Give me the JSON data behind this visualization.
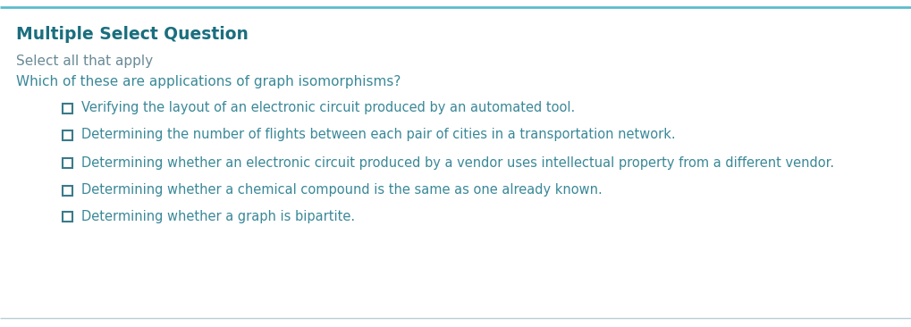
{
  "title": "Multiple Select Question",
  "subtitle": "Select all that apply",
  "question": "Which of these are applications of graph isomorphisms?",
  "options": [
    "Verifying the layout of an electronic circuit produced by an automated tool.",
    "Determining the number of flights between each pair of cities in a transportation network.",
    "Determining whether an electronic circuit produced by a vendor uses intellectual property from a different vendor.",
    "Determining whether a chemical compound is the same as one already known.",
    "Determining whether a graph is bipartite."
  ],
  "bg_color": "#ffffff",
  "title_color": "#1a6e7e",
  "subtitle_color": "#6a8a96",
  "question_color": "#3a8898",
  "option_color": "#3a8898",
  "checkbox_color": "#3a7a8a",
  "top_border_color": "#5abccc",
  "bottom_border_color": "#b8cdd5",
  "title_fontsize": 13.5,
  "subtitle_fontsize": 11,
  "question_fontsize": 11,
  "option_fontsize": 10.5
}
